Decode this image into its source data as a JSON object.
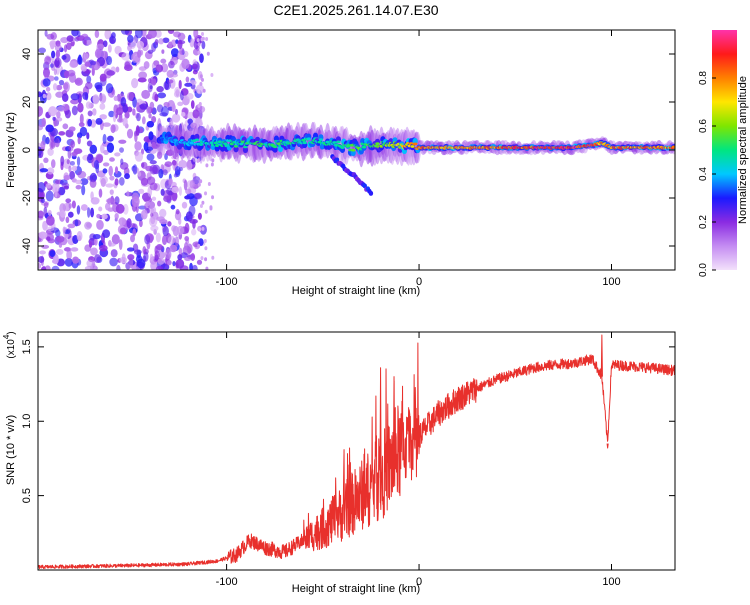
{
  "title": "C2E1.2025.261.14.07.E30",
  "colors": {
    "line": "#e8302c",
    "axis": "#000000",
    "colormap": [
      "#f3e1fb",
      "#c48cf2",
      "#8a2be2",
      "#1a1aff",
      "#00c8ff",
      "#00e680",
      "#7fe600",
      "#ffe600",
      "#ff8000",
      "#ff1a1a",
      "#ff33aa"
    ]
  },
  "chart_data": [
    {
      "type": "heatmap",
      "name": "spectrogram",
      "xlabel": "Height of straight line (km)",
      "ylabel": "Frequency (Hz)",
      "xlim": [
        -198,
        133
      ],
      "ylim": [
        -50,
        50
      ],
      "xticks": [
        -100,
        0,
        100
      ],
      "yticks": [
        -40,
        -20,
        0,
        20,
        40
      ],
      "xtick_labels": [
        "-100",
        "0",
        "100"
      ],
      "ytick_labels": [
        "-40",
        "-20",
        "0",
        "20",
        "40"
      ],
      "colorbar": {
        "label": "Normalized spectral amplitude",
        "range": [
          0,
          1
        ],
        "ticks": [
          0.0,
          0.2,
          0.4,
          0.6,
          0.8
        ],
        "tick_labels": [
          "0.0",
          "0.2",
          "0.4",
          "0.6",
          "0.8"
        ]
      },
      "ridge": {
        "x": [
          -135,
          -120,
          -100,
          -80,
          -60,
          -45,
          -35,
          -20,
          -5,
          0,
          20,
          50,
          80,
          90,
          95,
          100,
          133
        ],
        "y": [
          5,
          3,
          3,
          2,
          4,
          3,
          1,
          2,
          2,
          1,
          1,
          1,
          1,
          2,
          3,
          1,
          1
        ],
        "amplitude": [
          0.35,
          0.45,
          0.5,
          0.55,
          0.5,
          0.5,
          0.55,
          0.6,
          0.75,
          0.85,
          0.8,
          0.9,
          0.95,
          0.9,
          0.8,
          0.85,
          0.85
        ]
      },
      "noise_region_x": [
        -198,
        -120
      ],
      "noise_amplitude": [
        0.05,
        0.3
      ],
      "branch": {
        "x": [
          -45,
          -35,
          -25
        ],
        "y": [
          -3,
          -10,
          -18
        ]
      }
    },
    {
      "type": "line",
      "name": "snr",
      "xlabel": "Height of straight line (km)",
      "ylabel": "SNR (10 * v/v)",
      "multiplier_label": "(x10",
      "multiplier_exp": "4",
      "multiplier_close": ")",
      "xlim": [
        -198,
        133
      ],
      "ylim": [
        0,
        1.6
      ],
      "xticks": [
        -100,
        0,
        100
      ],
      "yticks": [
        0.5,
        1.0,
        1.5
      ],
      "xtick_labels": [
        "-100",
        "0",
        "100"
      ],
      "ytick_labels": [
        "0.5",
        "1.0",
        "1.5"
      ],
      "trend": {
        "x": [
          -198,
          -150,
          -120,
          -105,
          -95,
          -88,
          -80,
          -70,
          -60,
          -50,
          -40,
          -30,
          -20,
          -10,
          0,
          10,
          20,
          30,
          40,
          50,
          60,
          70,
          80,
          90,
          95,
          98,
          100,
          110,
          120,
          133
        ],
        "y": [
          0.02,
          0.03,
          0.04,
          0.06,
          0.1,
          0.2,
          0.15,
          0.12,
          0.2,
          0.28,
          0.38,
          0.5,
          0.62,
          0.8,
          0.9,
          1.05,
          1.15,
          1.22,
          1.28,
          1.32,
          1.36,
          1.38,
          1.39,
          1.42,
          1.3,
          0.85,
          1.38,
          1.37,
          1.36,
          1.34
        ]
      },
      "annotated_values": [
        {
          "x": -20,
          "y": 1.36
        },
        {
          "x": -13,
          "y": 1.3
        },
        {
          "x": 95,
          "y": 1.58
        },
        {
          "x": 98,
          "y": 0.82
        }
      ]
    }
  ]
}
